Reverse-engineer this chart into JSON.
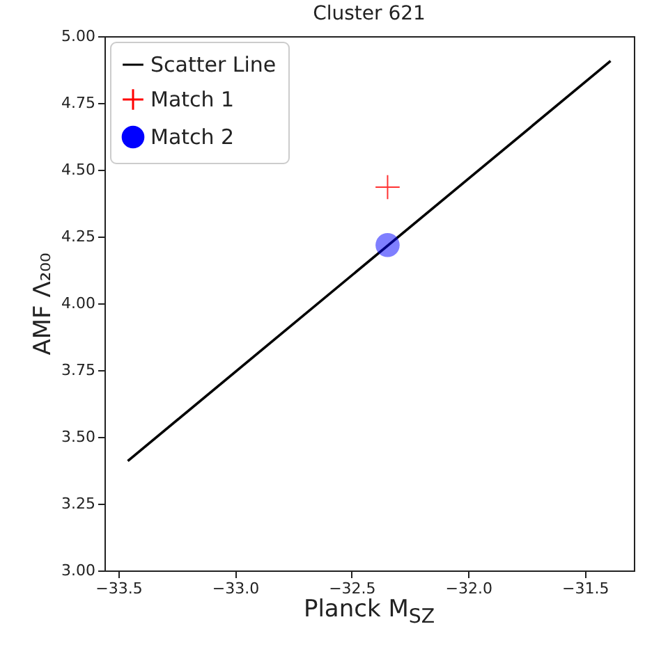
{
  "chart_data": {
    "type": "scatter",
    "title": "Cluster 621",
    "xlabel": "Planck M$_{SZ}$",
    "ylabel": "AMF Λ₂₀₀",
    "xlim": [
      -33.56,
      -31.29
    ],
    "ylim": [
      3.0,
      5.0
    ],
    "xticks": [
      {
        "value": -33.5,
        "label": "−33.5"
      },
      {
        "value": -33.0,
        "label": "−33.0"
      },
      {
        "value": -32.5,
        "label": "−32.5"
      },
      {
        "value": -32.0,
        "label": "−32.0"
      },
      {
        "value": -31.5,
        "label": "−31.5"
      }
    ],
    "yticks": [
      {
        "value": 3.0,
        "label": "3.00"
      },
      {
        "value": 3.25,
        "label": "3.25"
      },
      {
        "value": 3.5,
        "label": "3.50"
      },
      {
        "value": 3.75,
        "label": "3.75"
      },
      {
        "value": 4.0,
        "label": "4.00"
      },
      {
        "value": 4.25,
        "label": "4.25"
      },
      {
        "value": 4.5,
        "label": "4.50"
      },
      {
        "value": 4.75,
        "label": "4.75"
      },
      {
        "value": 5.0,
        "label": "5.00"
      }
    ],
    "legend": "top left",
    "series": [
      {
        "name": "Scatter Line",
        "type": "line",
        "color": "#000000",
        "marker": "none",
        "x": [
          -33.46,
          -31.39
        ],
        "values": [
          3.41,
          4.907
        ]
      },
      {
        "name": "Match 1",
        "color": "#ff0000",
        "marker": "cross",
        "x": [
          -32.346
        ],
        "values": [
          4.435
        ]
      },
      {
        "name": "Match 2",
        "color": "#0000ff",
        "marker": "circle",
        "x": [
          -32.346
        ],
        "values": [
          4.218
        ]
      }
    ]
  }
}
